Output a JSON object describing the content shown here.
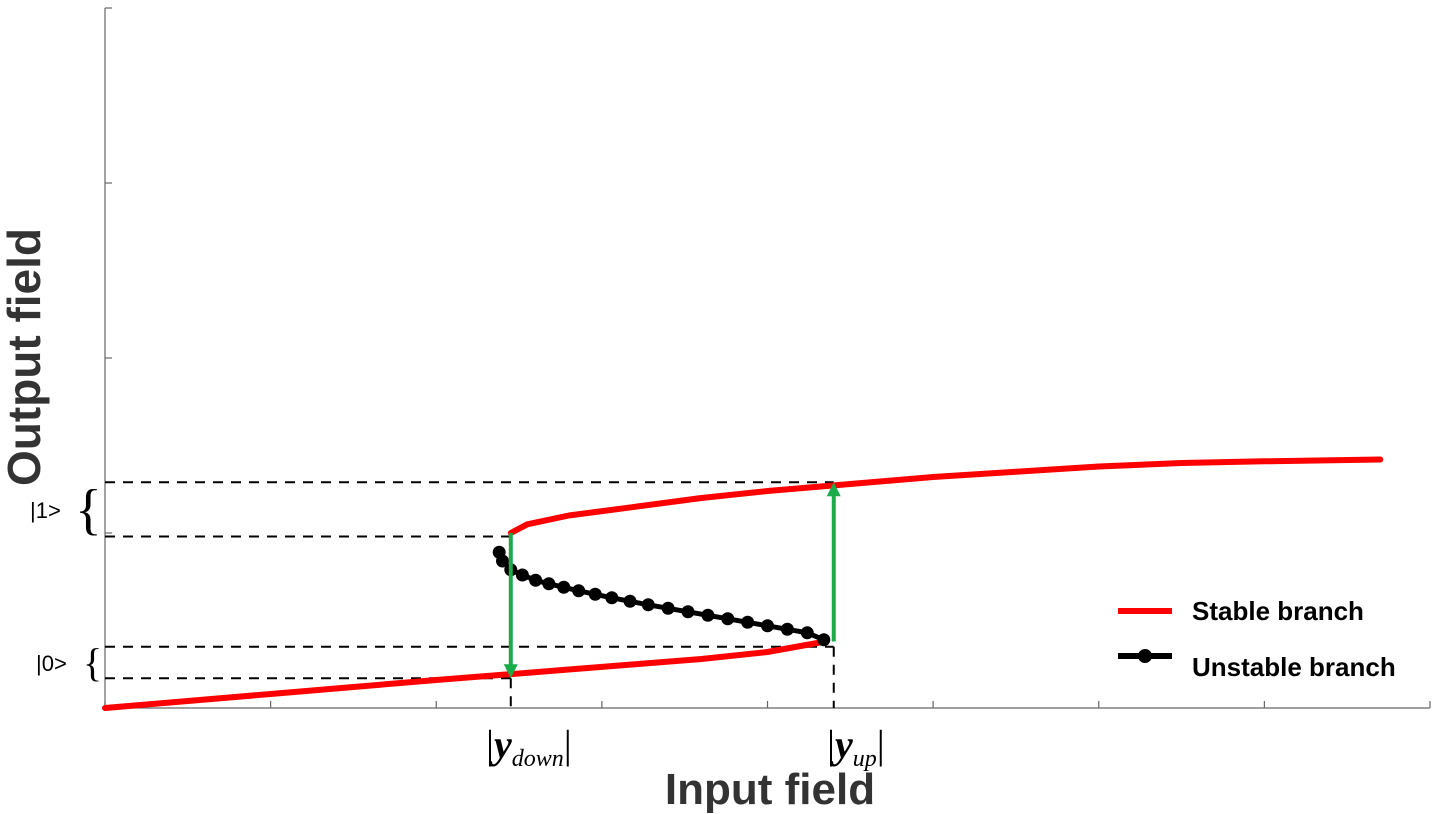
{
  "chart_data": {
    "type": "line",
    "xlabel": "Input field",
    "ylabel": "Output field",
    "xlim": [
      0,
      8
    ],
    "ylim": [
      0,
      4
    ],
    "x_ticks": [
      0,
      1,
      2,
      3,
      4,
      5,
      6,
      7,
      8
    ],
    "y_ticks": [
      0,
      1,
      2,
      3,
      4
    ],
    "grid": false,
    "legend_position": "bottom-right",
    "series": [
      {
        "name": "Stable branch",
        "color": "#ff0000",
        "style": "solid",
        "segments": [
          {
            "x": [
              0.0,
              0.5,
              1.0,
              1.5,
              2.0,
              2.4,
              2.8,
              3.2,
              3.6,
              4.0,
              4.35
            ],
            "y": [
              0.0,
              0.04,
              0.08,
              0.12,
              0.16,
              0.19,
              0.22,
              0.25,
              0.28,
              0.32,
              0.38
            ]
          },
          {
            "x": [
              2.45,
              2.55,
              2.8,
              3.2,
              3.6,
              4.0,
              4.5,
              5.0,
              5.5,
              6.0,
              6.5,
              7.0,
              7.7
            ],
            "y": [
              1.0,
              1.05,
              1.1,
              1.15,
              1.2,
              1.24,
              1.28,
              1.32,
              1.35,
              1.38,
              1.4,
              1.41,
              1.42
            ]
          }
        ]
      },
      {
        "name": "Unstable branch",
        "color": "#000000",
        "style": "solid-with-markers",
        "x": [
          2.38,
          2.4,
          2.45,
          2.52,
          2.6,
          2.68,
          2.77,
          2.86,
          2.96,
          3.06,
          3.17,
          3.28,
          3.4,
          3.52,
          3.64,
          3.76,
          3.88,
          4.0,
          4.12,
          4.24,
          4.34
        ],
        "y": [
          0.89,
          0.84,
          0.79,
          0.76,
          0.73,
          0.71,
          0.69,
          0.67,
          0.65,
          0.63,
          0.61,
          0.59,
          0.57,
          0.55,
          0.53,
          0.51,
          0.49,
          0.47,
          0.45,
          0.43,
          0.39
        ]
      }
    ],
    "transitions": [
      {
        "x": 2.45,
        "from_y": 1.0,
        "to_y": 0.17,
        "color": "#1aab4a"
      },
      {
        "x": 4.4,
        "from_y": 0.38,
        "to_y": 1.29,
        "color": "#1aab4a"
      }
    ],
    "reference_levels": {
      "one_upper": 1.29,
      "one_lower": 0.98,
      "zero_upper": 0.35,
      "zero_lower": 0.17,
      "y_down_x": 2.45,
      "y_up_x": 4.4
    },
    "state_labels": {
      "one": "|1>",
      "zero": "|0>"
    },
    "brace_glyph": "{",
    "x_marks": {
      "down": {
        "open": "|",
        "y": "y",
        "sub": "down",
        "close": "|"
      },
      "up": {
        "open": "|",
        "y": "y",
        "sub": "up",
        "close": "|"
      }
    }
  }
}
